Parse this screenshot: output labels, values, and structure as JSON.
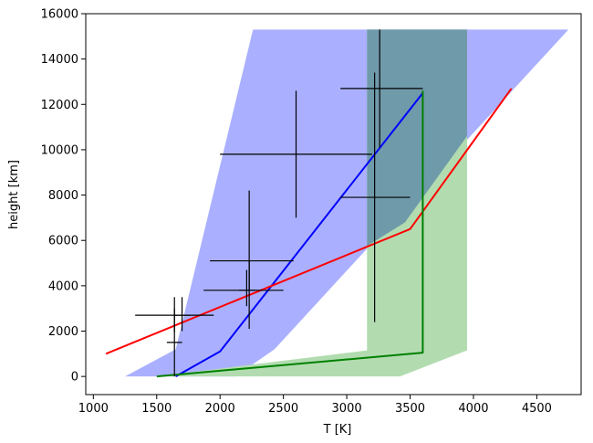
{
  "chart_data": {
    "type": "line",
    "xlabel": "T [K]",
    "ylabel": "height [km]",
    "xlim": [
      940,
      4850
    ],
    "ylim": [
      -800,
      16000
    ],
    "xticks": [
      1000,
      1500,
      2000,
      2500,
      3000,
      3500,
      4000,
      4500
    ],
    "yticks": [
      0,
      2000,
      4000,
      6000,
      8000,
      10000,
      12000,
      14000,
      16000
    ],
    "grid": false,
    "colors": {
      "blue_band": "#aab0ff",
      "green_band": "#b2dcb0",
      "overlap_band": "#6f9aaa",
      "blue_line": "#0000ff",
      "red_line": "#ff0000",
      "green_line": "#008000",
      "error_bars": "#000000"
    },
    "bands": [
      {
        "color_key": "blue_band",
        "polygon": [
          [
            1250,
            0
          ],
          [
            1650,
            1200
          ],
          [
            2260,
            15300
          ],
          [
            4750,
            15300
          ],
          [
            2430,
            1200
          ],
          [
            2120,
            0
          ]
        ]
      },
      {
        "color_key": "green_band",
        "polygon": [
          [
            1500,
            0
          ],
          [
            3160,
            1150
          ],
          [
            3160,
            15300
          ],
          [
            3950,
            15300
          ],
          [
            3950,
            1150
          ],
          [
            3420,
            0
          ]
        ]
      },
      {
        "color_key": "overlap_band",
        "polygon": [
          [
            3160,
            15300
          ],
          [
            3950,
            15300
          ],
          [
            3950,
            10600
          ],
          [
            3460,
            6800
          ],
          [
            3160,
            5750
          ]
        ]
      }
    ],
    "series": [
      {
        "color_key": "blue_line",
        "points": [
          [
            1650,
            0
          ],
          [
            2000,
            1100
          ],
          [
            3600,
            12500
          ]
        ]
      },
      {
        "color_key": "red_line",
        "points": [
          [
            1100,
            1000
          ],
          [
            3500,
            6500
          ],
          [
            4300,
            12700
          ]
        ]
      },
      {
        "color_key": "green_line",
        "points": [
          [
            1500,
            0
          ],
          [
            3600,
            1050
          ],
          [
            3600,
            12600
          ]
        ]
      }
    ],
    "error_bars": [
      {
        "x": 1640,
        "y": 2700,
        "xerr": [
          1330,
          1950
        ],
        "yerr": [
          1950,
          3500
        ]
      },
      {
        "x": 1640,
        "y": 1500,
        "xerr": [
          1580,
          1700
        ],
        "yerr": [
          0,
          3000
        ]
      },
      {
        "x": 1700,
        "y": 2700,
        "xerr": [
          1640,
          1760
        ],
        "yerr": [
          2000,
          3500
        ]
      },
      {
        "x": 2230,
        "y": 3800,
        "xerr": [
          1870,
          2500
        ],
        "yerr": [
          2100,
          5100
        ]
      },
      {
        "x": 2230,
        "y": 5100,
        "xerr": [
          1920,
          2580
        ],
        "yerr": [
          3800,
          8200
        ]
      },
      {
        "x": 2210,
        "y": 3800,
        "xerr": [
          2150,
          2280
        ],
        "yerr": [
          3100,
          4700
        ]
      },
      {
        "x": 2600,
        "y": 9800,
        "xerr": [
          2000,
          3200
        ],
        "yerr": [
          7000,
          12600
        ]
      },
      {
        "x": 3260,
        "y": 12700,
        "xerr": [
          2950,
          3600
        ],
        "yerr": [
          10100,
          15300
        ]
      },
      {
        "x": 3220,
        "y": 7900,
        "xerr": [
          2950,
          3500
        ],
        "yerr": [
          2400,
          13400
        ]
      }
    ]
  }
}
